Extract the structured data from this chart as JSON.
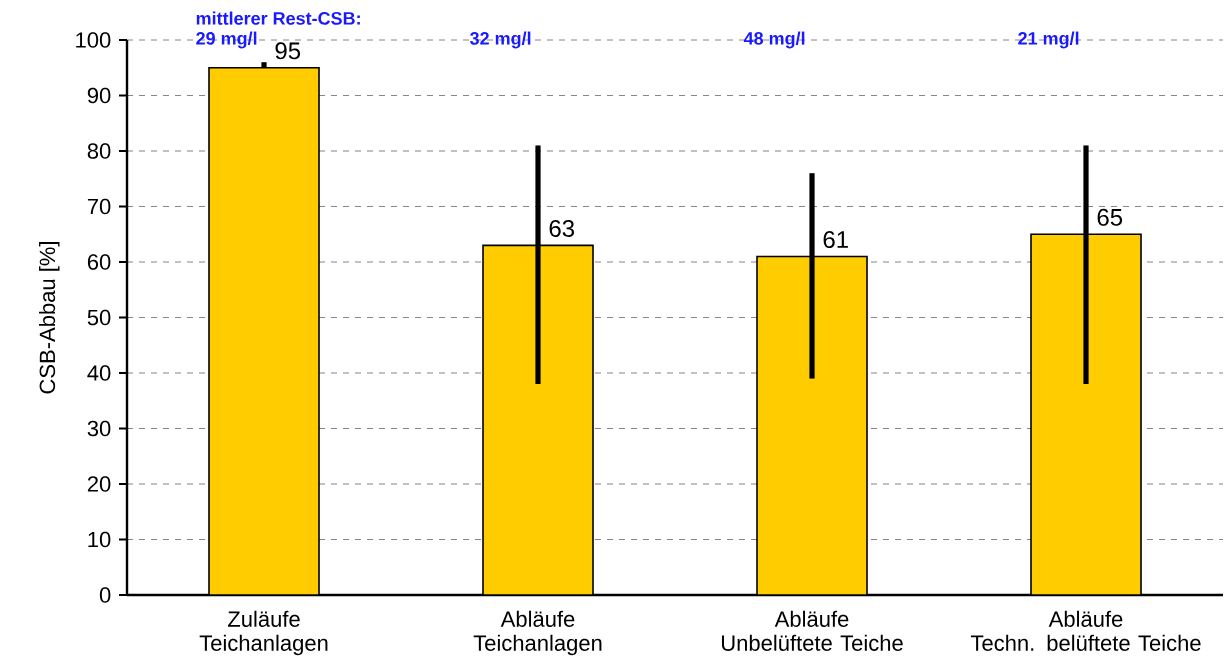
{
  "chart_data": {
    "type": "bar",
    "ylabel": "CSB-Abbau [%]",
    "categories": [
      "Zuläufe\nTeichanlagen",
      "Abläufe\nTeichanlagen",
      "Abläufe\nUnbelüftete Teiche",
      "Abläufe\nTechn. belüftete Teiche"
    ],
    "values": [
      95,
      63,
      61,
      65
    ],
    "color": "#ffcc00",
    "errors": [
      [
        95,
        96
      ],
      [
        38,
        81
      ],
      [
        39,
        76
      ],
      [
        38,
        81
      ]
    ],
    "value_labels": [
      "95",
      "63",
      "61",
      "65"
    ],
    "ylim": [
      0,
      100
    ],
    "yticks": [
      0,
      10,
      20,
      30,
      40,
      50,
      60,
      70,
      80,
      90,
      100
    ],
    "grid": "y",
    "annotations": [
      "mittlerer Rest-CSB:",
      "29 mg/l",
      "32 mg/l",
      "48 mg/l",
      "21 mg/l"
    ]
  }
}
